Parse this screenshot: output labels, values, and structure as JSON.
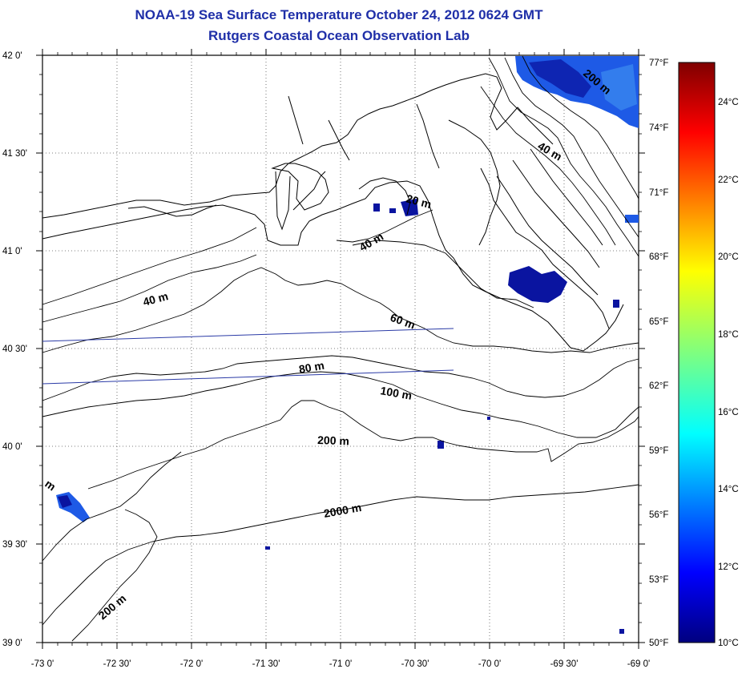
{
  "title": {
    "line1": "NOAA-19 Sea Surface Temperature October 24, 2012 0624 GMT",
    "line2": "Rutgers Coastal Ocean Observation Lab"
  },
  "axes": {
    "lat_labels": [
      "42 0'",
      "41 30'",
      "41 0'",
      "40 30'",
      "40 0'",
      "39 30'",
      "39 0'"
    ],
    "lon_labels": [
      "-73 0'",
      "-72 30'",
      "-72 0'",
      "-71 30'",
      "-71 0'",
      "-70 30'",
      "-70 0'",
      "-69 30'",
      "-69 0'"
    ]
  },
  "colorbar": {
    "fahrenheit": [
      "77°F",
      "74°F",
      "71°F",
      "68°F",
      "65°F",
      "62°F",
      "59°F",
      "56°F",
      "53°F",
      "50°F"
    ],
    "celsius": [
      "24°C",
      "22°C",
      "20°C",
      "18°C",
      "16°C",
      "14°C",
      "12°C",
      "10°C"
    ]
  },
  "contours": {
    "c200_top": "200 m",
    "c40_ne": "40 m",
    "c20": "20 m",
    "c40_mid": "40 m",
    "c40_w": "40 m",
    "c60": "60 m",
    "c80": "80 m",
    "c100": "100 m",
    "c200_mid": "200 m",
    "c2000": "2000 m",
    "c200_sw": "200 m",
    "cm_edge": "m"
  },
  "colors": {
    "title": "#1f2fa8",
    "sst_deep": "#0a14a0",
    "sst_mid": "#1e5ae6",
    "sst_light": "#3c8cf0"
  }
}
